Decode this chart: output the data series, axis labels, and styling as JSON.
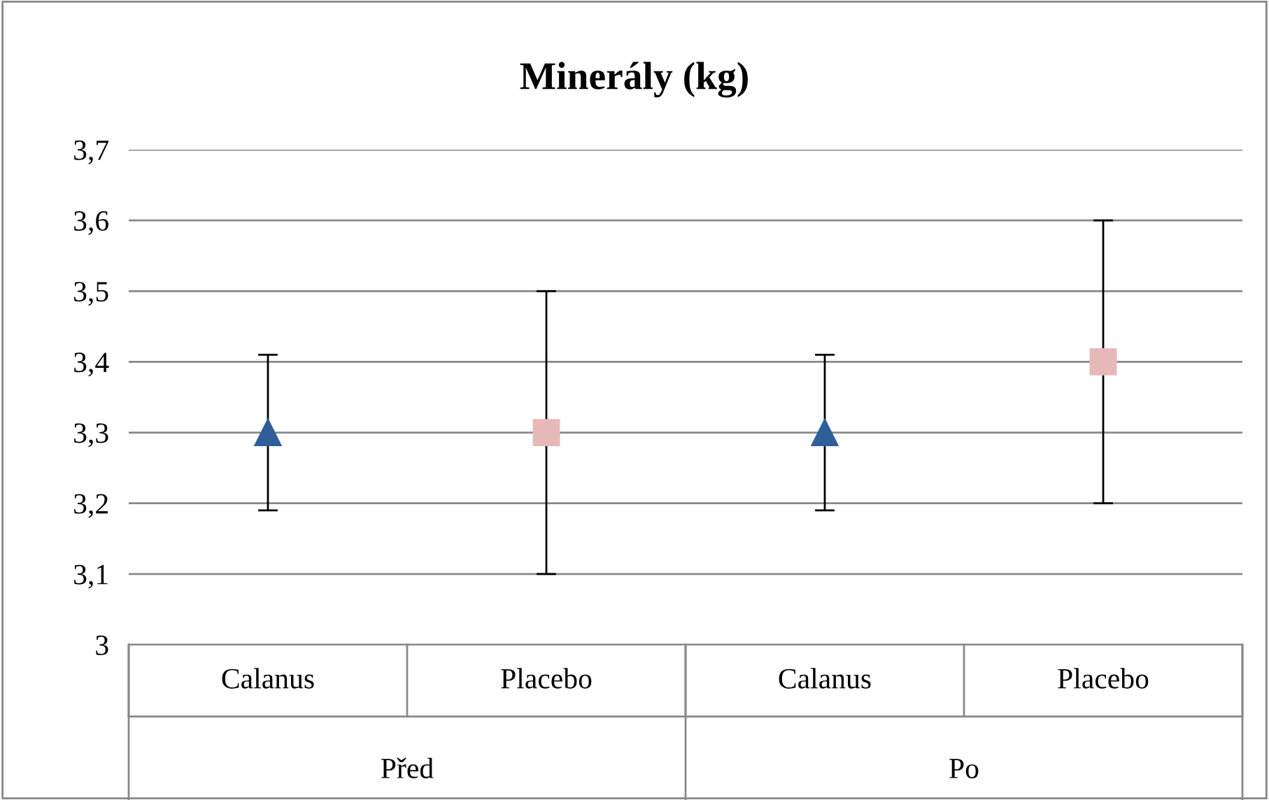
{
  "chart_data": {
    "type": "scatter",
    "title": "Minerály (kg)",
    "categories": [
      "Calanus",
      "Placebo",
      "Calanus",
      "Placebo"
    ],
    "series": [
      {
        "color": "#2f5f98",
        "marker": "triangle",
        "values": [
          3.3,
          null,
          3.3,
          null
        ],
        "errors": [
          0.11,
          null,
          0.11,
          null
        ]
      },
      {
        "color": "#e6b9b8",
        "marker": "square",
        "values": [
          null,
          3.3,
          null,
          3.4
        ],
        "errors": [
          null,
          0.2,
          null,
          0.2
        ]
      }
    ],
    "annotations": [
      "Před",
      "Po"
    ],
    "ylim": [
      3,
      3.7
    ],
    "yticks": [
      3,
      {
        "value": 3.1,
        "label": "3,1"
      },
      {
        "value": 3.2,
        "label": "3,2"
      },
      {
        "value": 3.3,
        "label": "3,3"
      },
      {
        "value": 3.4,
        "label": "3,4"
      },
      {
        "value": 3.5,
        "label": "3,5"
      },
      {
        "value": 3.6,
        "label": "3,6"
      },
      {
        "value": 3.7,
        "label": "3,7"
      }
    ],
    "grid": "y"
  }
}
